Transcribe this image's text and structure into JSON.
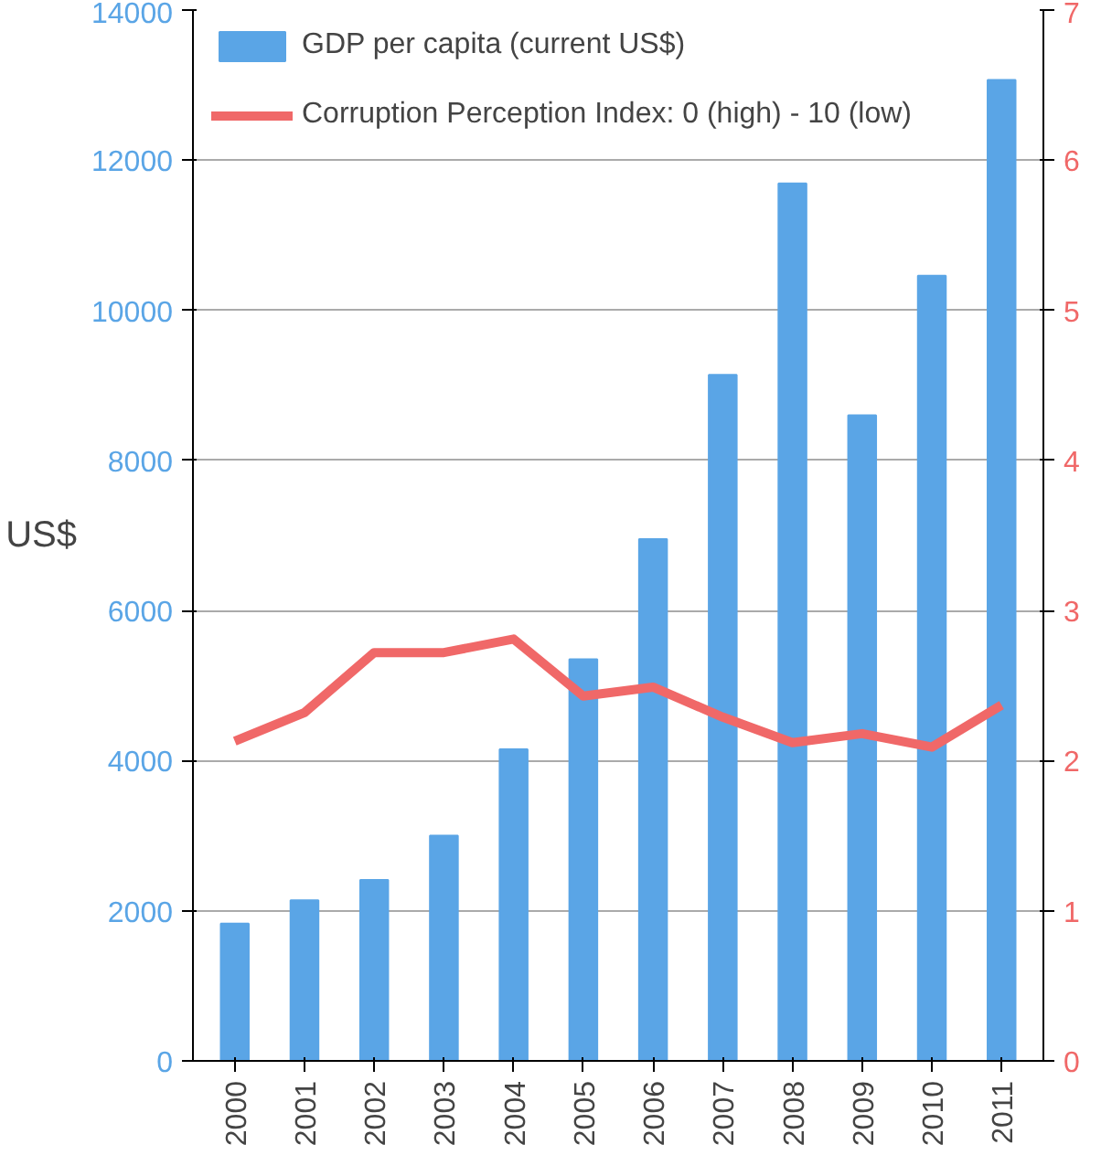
{
  "chart_data": {
    "type": "bar",
    "ylabel": "US$",
    "categories": [
      "2000",
      "2001",
      "2002",
      "2003",
      "2004",
      "2005",
      "2006",
      "2007",
      "2008",
      "2009",
      "2010",
      "2011"
    ],
    "series": [
      {
        "name": "GDP per capita (current US$)",
        "color": "#5aa5e6",
        "values": [
          1830,
          2140,
          2410,
          3000,
          4150,
          5350,
          6950,
          9140,
          11690,
          8600,
          10460,
          13070
        ]
      },
      {
        "name": "Corruption Perception Index: 0 (high) - 10 (low)",
        "type": "line",
        "axis": "y2",
        "color": "#f06868",
        "values": [
          2.13,
          2.32,
          2.72,
          2.72,
          2.81,
          2.43,
          2.49,
          2.29,
          2.12,
          2.18,
          2.09,
          2.37
        ]
      }
    ],
    "ylim": [
      0,
      14000
    ],
    "yticks": [
      0,
      2000,
      4000,
      6000,
      8000,
      10000,
      12000,
      14000
    ],
    "y2lim": [
      0,
      7
    ],
    "y2ticks": [
      0,
      1,
      2,
      3,
      4,
      5,
      6,
      7
    ],
    "grid": "y",
    "legend": "top"
  }
}
